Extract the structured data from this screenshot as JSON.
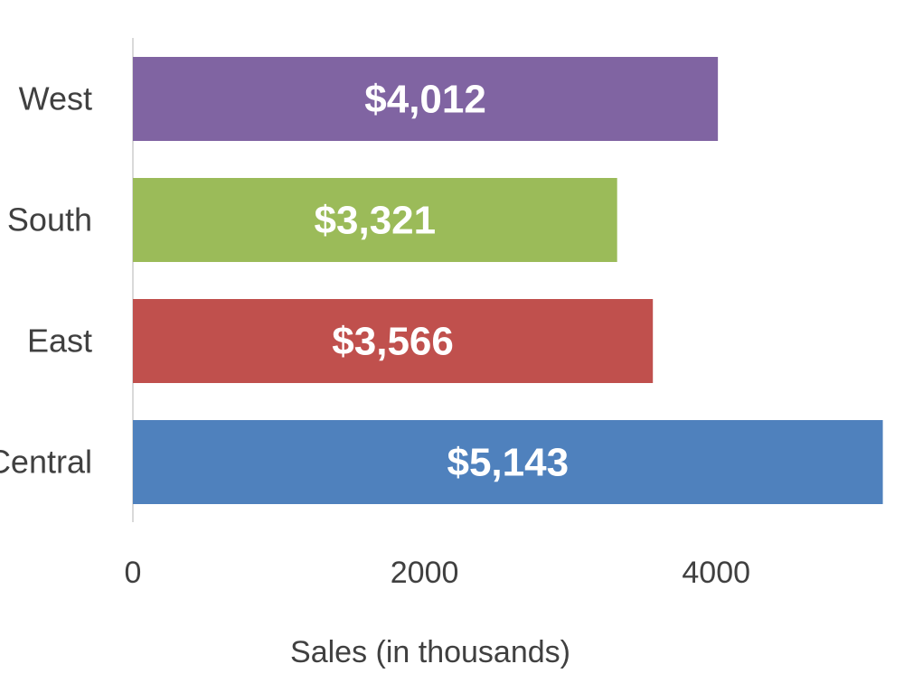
{
  "chart_data": {
    "type": "bar",
    "orientation": "horizontal",
    "categories": [
      "West",
      "South",
      "East",
      "Central"
    ],
    "values": [
      4012,
      3321,
      3566,
      5143
    ],
    "data_labels": [
      "$4,012",
      "$3,321",
      "$3,566",
      "$5,143"
    ],
    "colors": [
      "#8064A2",
      "#9BBB59",
      "#C0504D",
      "#4F81BD"
    ],
    "xlabel": "Sales  (in thousands)",
    "ylabel": "",
    "xlim": [
      0,
      5143
    ],
    "x_ticks": [
      0,
      2000,
      4000
    ],
    "grid": false,
    "legend": "none"
  }
}
